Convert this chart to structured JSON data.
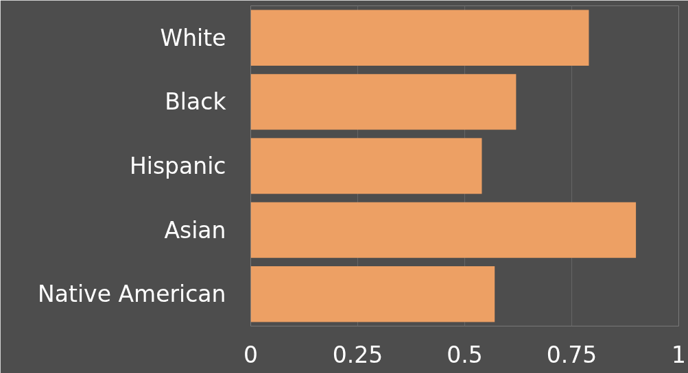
{
  "chart_data": {
    "type": "bar",
    "orientation": "horizontal",
    "categories": [
      "White",
      "Black",
      "Hispanic",
      "Asian",
      "Native American"
    ],
    "values": [
      0.79,
      0.62,
      0.54,
      0.9,
      0.57
    ],
    "color": "#eda064",
    "xlim": [
      0,
      1
    ],
    "xticks": [
      0,
      0.25,
      0.5,
      0.75,
      1
    ],
    "grid": "x"
  }
}
